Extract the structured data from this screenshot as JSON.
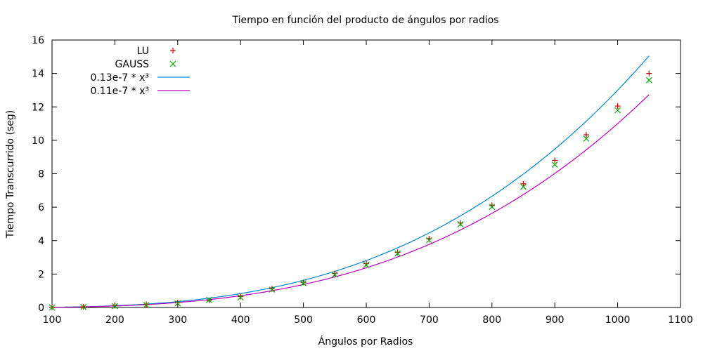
{
  "chart_data": {
    "type": "scatter",
    "title": "Tiempo en función del producto de ángulos por radios",
    "xlabel": "Ángulos por Radios",
    "ylabel": "Tiempo Transcurrido (seg)",
    "xlim": [
      100,
      1100
    ],
    "ylim": [
      0,
      16
    ],
    "xticks": [
      100,
      200,
      300,
      400,
      500,
      600,
      700,
      800,
      900,
      1000,
      1100
    ],
    "yticks": [
      0,
      2,
      4,
      6,
      8,
      10,
      12,
      14,
      16
    ],
    "grid": false,
    "legend_position": "top-left",
    "series": [
      {
        "name": "LU",
        "kind": "points",
        "marker": "plus",
        "color": "#cc0000",
        "x": [
          100,
          150,
          200,
          250,
          300,
          350,
          400,
          450,
          500,
          550,
          600,
          650,
          700,
          750,
          800,
          850,
          900,
          950,
          1000,
          1050
        ],
        "y": [
          0.01,
          0.04,
          0.1,
          0.18,
          0.3,
          0.42,
          0.65,
          1.12,
          1.5,
          2.03,
          2.62,
          3.3,
          4.12,
          5.05,
          6.12,
          7.4,
          8.8,
          10.33,
          12.05,
          14.0
        ]
      },
      {
        "name": "GAUSS",
        "kind": "points",
        "marker": "x",
        "color": "#00aa00",
        "x": [
          100,
          150,
          200,
          250,
          300,
          350,
          400,
          450,
          500,
          550,
          600,
          650,
          700,
          750,
          800,
          850,
          900,
          950,
          1000,
          1050
        ],
        "y": [
          0.0,
          0.03,
          0.08,
          0.15,
          0.25,
          0.45,
          0.6,
          1.07,
          1.45,
          1.96,
          2.55,
          3.23,
          4.02,
          4.98,
          6.02,
          7.22,
          8.55,
          10.1,
          11.8,
          13.6
        ]
      },
      {
        "name": "0.13e-7 * x³",
        "kind": "function",
        "coefficient": 1.3e-08,
        "exponent": 3,
        "color": "#0088cc",
        "x_range": [
          100,
          1050
        ]
      },
      {
        "name": "0.11e-7 * x³",
        "kind": "function",
        "coefficient": 1.1e-08,
        "exponent": 3,
        "color": "#bb00bb",
        "x_range": [
          100,
          1050
        ]
      }
    ]
  }
}
